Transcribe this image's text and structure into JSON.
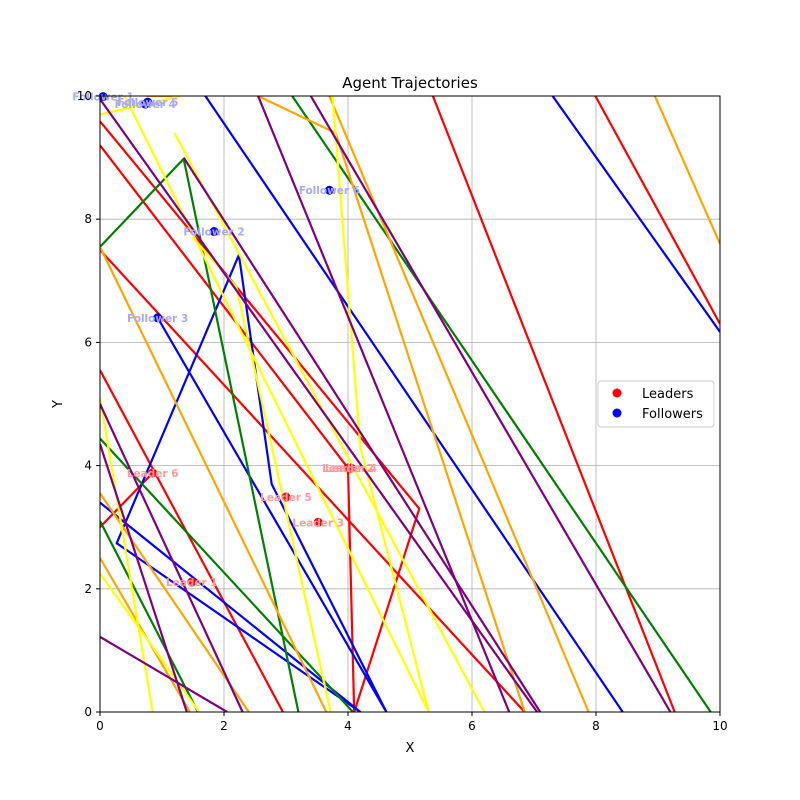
{
  "chart_data": {
    "type": "scatter",
    "title": "Agent Trajectories",
    "xlabel": "X",
    "ylabel": "Y",
    "xlim": [
      0,
      10
    ],
    "ylim": [
      0,
      10
    ],
    "xticks": [
      "0",
      "2",
      "4",
      "6",
      "8",
      "10"
    ],
    "yticks": [
      "0",
      "2",
      "4",
      "6",
      "8",
      "10"
    ],
    "grid": true,
    "legend": {
      "placement": "center-right",
      "entries": [
        {
          "label": "Leaders",
          "color": "#ff0000"
        },
        {
          "label": "Followers",
          "color": "#0000ff"
        }
      ]
    },
    "series": [
      {
        "name": "Leaders",
        "color": "#ff0000",
        "points": [
          {
            "label": "Leader 1",
            "x": 1.48,
            "y": 2.11
          },
          {
            "label": "Leader 2",
            "x": 4.0,
            "y": 3.96
          },
          {
            "label": "Leader 3",
            "x": 3.52,
            "y": 3.08
          },
          {
            "label": "Leader 4",
            "x": 4.05,
            "y": 3.96
          },
          {
            "label": "Leader 5",
            "x": 3.0,
            "y": 3.49
          },
          {
            "label": "Leader 6",
            "x": 0.85,
            "y": 3.88
          }
        ]
      },
      {
        "name": "Followers",
        "color": "#0000ff",
        "points": [
          {
            "label": "Follower 1",
            "x": 0.05,
            "y": 9.99
          },
          {
            "label": "Follower 2",
            "x": 1.84,
            "y": 7.8
          },
          {
            "label": "Follower 3",
            "x": 0.93,
            "y": 6.4
          },
          {
            "label": "Follower 4",
            "x": 0.73,
            "y": 9.87
          },
          {
            "label": "Follower 5",
            "x": 0.77,
            "y": 9.9
          },
          {
            "label": "Follower 6",
            "x": 3.7,
            "y": 8.47
          }
        ]
      }
    ],
    "trajectories": [
      {
        "color": "#ff0000",
        "points": [
          [
            0,
            9.59
          ],
          [
            5.15,
            3.3
          ],
          [
            4.1,
            0
          ],
          [
            4.0,
            3.96
          ],
          [
            0,
            9.2
          ]
        ]
      },
      {
        "color": "#ff0000",
        "points": [
          [
            0,
            5.55
          ],
          [
            2.95,
            0
          ]
        ]
      },
      {
        "color": "#ff0000",
        "points": [
          [
            0,
            7.5
          ],
          [
            6.85,
            0
          ]
        ]
      },
      {
        "color": "#ff0000",
        "points": [
          [
            5.37,
            10
          ],
          [
            9.27,
            0
          ]
        ]
      },
      {
        "color": "#ff0000",
        "points": [
          [
            7.99,
            10
          ],
          [
            10,
            6.3
          ]
        ]
      },
      {
        "color": "#ff0000",
        "points": [
          [
            0,
            3.0
          ],
          [
            0.85,
            3.88
          ]
        ]
      },
      {
        "color": "#0000ff",
        "points": [
          [
            0.93,
            6.4
          ],
          [
            4.62,
            0
          ],
          [
            2.77,
            3.7
          ],
          [
            2.24,
            7.42
          ],
          [
            0.27,
            2.74
          ],
          [
            4.2,
            0
          ],
          [
            0,
            3.4
          ]
        ]
      },
      {
        "color": "#0000ff",
        "points": [
          [
            1.7,
            10
          ],
          [
            8.43,
            0
          ]
        ]
      },
      {
        "color": "#0000ff",
        "points": [
          [
            7.3,
            10
          ],
          [
            10,
            6.17
          ]
        ]
      },
      {
        "color": "#008000",
        "points": [
          [
            0,
            7.55
          ],
          [
            1.35,
            8.98
          ],
          [
            3.2,
            0
          ]
        ]
      },
      {
        "color": "#008000",
        "points": [
          [
            3.1,
            10
          ],
          [
            9.85,
            0
          ]
        ]
      },
      {
        "color": "#008000",
        "points": [
          [
            0,
            4.44
          ],
          [
            4.08,
            0
          ]
        ]
      },
      {
        "color": "#008000",
        "points": [
          [
            0,
            3.1
          ],
          [
            1.58,
            0
          ]
        ]
      },
      {
        "color": "#ffa500",
        "points": [
          [
            0,
            7.55
          ],
          [
            3.65,
            0
          ]
        ]
      },
      {
        "color": "#ffa500",
        "points": [
          [
            0,
            3.55
          ],
          [
            2.4,
            0
          ]
        ]
      },
      {
        "color": "#ffa500",
        "points": [
          [
            0,
            2.5
          ],
          [
            1.45,
            0
          ]
        ]
      },
      {
        "color": "#ffa500",
        "points": [
          [
            2.55,
            10
          ],
          [
            3.8,
            9.4
          ],
          [
            6.85,
            0
          ]
        ]
      },
      {
        "color": "#ffa500",
        "points": [
          [
            3.7,
            10
          ],
          [
            7.88,
            0
          ]
        ]
      },
      {
        "color": "#ffa500",
        "points": [
          [
            8.95,
            10
          ],
          [
            10,
            7.6
          ]
        ]
      },
      {
        "color": "#ffa500",
        "points": [
          [
            0.75,
            10
          ],
          [
            1.25,
            10
          ]
        ]
      },
      {
        "color": "#ffff00",
        "points": [
          [
            0,
            9.7
          ],
          [
            1.3,
            10
          ]
        ]
      },
      {
        "color": "#ffff00",
        "points": [
          [
            0.4,
            10
          ],
          [
            5.3,
            0
          ]
        ]
      },
      {
        "color": "#ffff00",
        "points": [
          [
            3.75,
            10
          ],
          [
            4.2,
            4.3
          ],
          [
            5.3,
            0
          ]
        ]
      },
      {
        "color": "#ffff00",
        "points": [
          [
            1.2,
            9.4
          ],
          [
            6.2,
            0
          ]
        ]
      },
      {
        "color": "#ffff00",
        "points": [
          [
            0,
            5.1
          ],
          [
            0.85,
            0
          ]
        ]
      },
      {
        "color": "#ffff00",
        "points": [
          [
            0,
            2.25
          ],
          [
            1.6,
            0
          ]
        ]
      },
      {
        "color": "#ffff00",
        "points": [
          [
            1.5,
            7.7
          ],
          [
            2.2,
            6.9
          ],
          [
            3.72,
            0
          ]
        ]
      },
      {
        "color": "#800080",
        "points": [
          [
            0,
            9.95
          ],
          [
            7.05,
            0
          ]
        ]
      },
      {
        "color": "#800080",
        "points": [
          [
            2.55,
            10
          ],
          [
            6.6,
            0
          ]
        ]
      },
      {
        "color": "#800080",
        "points": [
          [
            3.4,
            10
          ],
          [
            9.2,
            0
          ]
        ]
      },
      {
        "color": "#800080",
        "points": [
          [
            0,
            4.35
          ],
          [
            1.4,
            0
          ]
        ]
      },
      {
        "color": "#800080",
        "points": [
          [
            0,
            1.22
          ],
          [
            2.05,
            0
          ]
        ]
      },
      {
        "color": "#800080",
        "points": [
          [
            0,
            5.0
          ],
          [
            2.3,
            0
          ]
        ]
      },
      {
        "color": "#800080",
        "points": [
          [
            1.35,
            9.0
          ],
          [
            7.1,
            0
          ]
        ]
      }
    ]
  }
}
